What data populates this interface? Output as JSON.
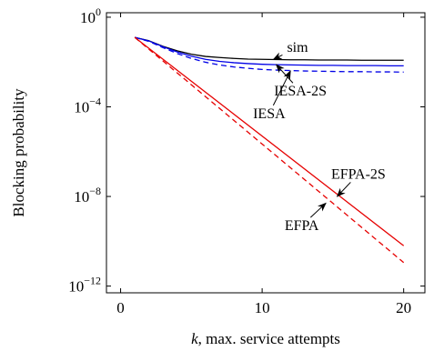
{
  "chart_data": {
    "type": "line",
    "title": "",
    "xlabel": "k, max. service attempts",
    "xlabel_var": "k",
    "xlabel_rest": ", max. service attempts",
    "ylabel": "Blocking probability",
    "xlim": [
      -1,
      21.5
    ],
    "ylim_exp": [
      -12.3,
      0.2
    ],
    "y_scale": "log",
    "grid": false,
    "xticks": [
      0,
      10,
      20
    ],
    "yticks_exp": [
      0,
      -4,
      -8,
      -12
    ],
    "ytick_labels": [
      {
        "base": "10",
        "exp": "0"
      },
      {
        "base": "10",
        "exp": "−4"
      },
      {
        "base": "10",
        "exp": "−8"
      },
      {
        "base": "10",
        "exp": "−12"
      }
    ],
    "series": [
      {
        "name": "sim",
        "color": "#000000",
        "dash": "solid",
        "x": [
          1,
          2,
          3,
          4,
          5,
          6,
          7,
          8,
          9,
          10,
          11,
          12,
          13,
          14,
          15,
          16,
          17,
          18,
          19,
          20
        ],
        "log10_y": [
          -0.9,
          -1.05,
          -1.3,
          -1.5,
          -1.65,
          -1.75,
          -1.8,
          -1.84,
          -1.87,
          -1.88,
          -1.89,
          -1.9,
          -1.9,
          -1.91,
          -1.91,
          -1.91,
          -1.92,
          -1.92,
          -1.92,
          -1.92
        ]
      },
      {
        "name": "IESA-2S",
        "color": "#0000e6",
        "dash": "solid",
        "x": [
          1,
          2,
          3,
          4,
          5,
          6,
          7,
          8,
          9,
          10,
          11,
          12,
          13,
          14,
          15,
          16,
          17,
          18,
          19,
          20
        ],
        "log10_y": [
          -0.9,
          -1.06,
          -1.32,
          -1.55,
          -1.74,
          -1.88,
          -1.97,
          -2.03,
          -2.07,
          -2.1,
          -2.12,
          -2.13,
          -2.14,
          -2.15,
          -2.15,
          -2.16,
          -2.16,
          -2.16,
          -2.17,
          -2.17
        ]
      },
      {
        "name": "IESA",
        "color": "#0000e6",
        "dash": "dashed",
        "x": [
          1,
          2,
          3,
          4,
          5,
          6,
          7,
          8,
          9,
          10,
          11,
          12,
          13,
          14,
          15,
          16,
          17,
          18,
          19,
          20
        ],
        "log10_y": [
          -0.9,
          -1.08,
          -1.36,
          -1.62,
          -1.84,
          -2.01,
          -2.13,
          -2.22,
          -2.28,
          -2.33,
          -2.36,
          -2.38,
          -2.4,
          -2.41,
          -2.42,
          -2.43,
          -2.43,
          -2.44,
          -2.44,
          -2.45
        ]
      },
      {
        "name": "EFPA-2S",
        "color": "#e60000",
        "dash": "solid",
        "x": [
          1,
          20
        ],
        "log10_y": [
          -0.9,
          -10.2
        ]
      },
      {
        "name": "EFPA",
        "color": "#e60000",
        "dash": "dashed",
        "x": [
          1,
          20
        ],
        "log10_y": [
          -0.9,
          -10.95
        ]
      }
    ],
    "annotations": [
      {
        "text": "sim",
        "text_x": 12.5,
        "text_y_exp": -1.35,
        "arrow_x": 10.8,
        "arrow_y_exp": -1.88
      },
      {
        "text": "IESA-2S",
        "text_x": 12.7,
        "text_y_exp": -3.3,
        "arrow_x": 11.0,
        "arrow_y_exp": -2.12
      },
      {
        "text": "IESA",
        "text_x": 10.5,
        "text_y_exp": -4.3,
        "arrow_x": 12.0,
        "arrow_y_exp": -2.4
      },
      {
        "text": "EFPA-2S",
        "text_x": 16.8,
        "text_y_exp": -7.0,
        "arrow_x": 15.3,
        "arrow_y_exp": -8.0
      },
      {
        "text": "EFPA",
        "text_x": 12.8,
        "text_y_exp": -9.3,
        "arrow_x": 14.5,
        "arrow_y_exp": -8.3
      }
    ]
  }
}
